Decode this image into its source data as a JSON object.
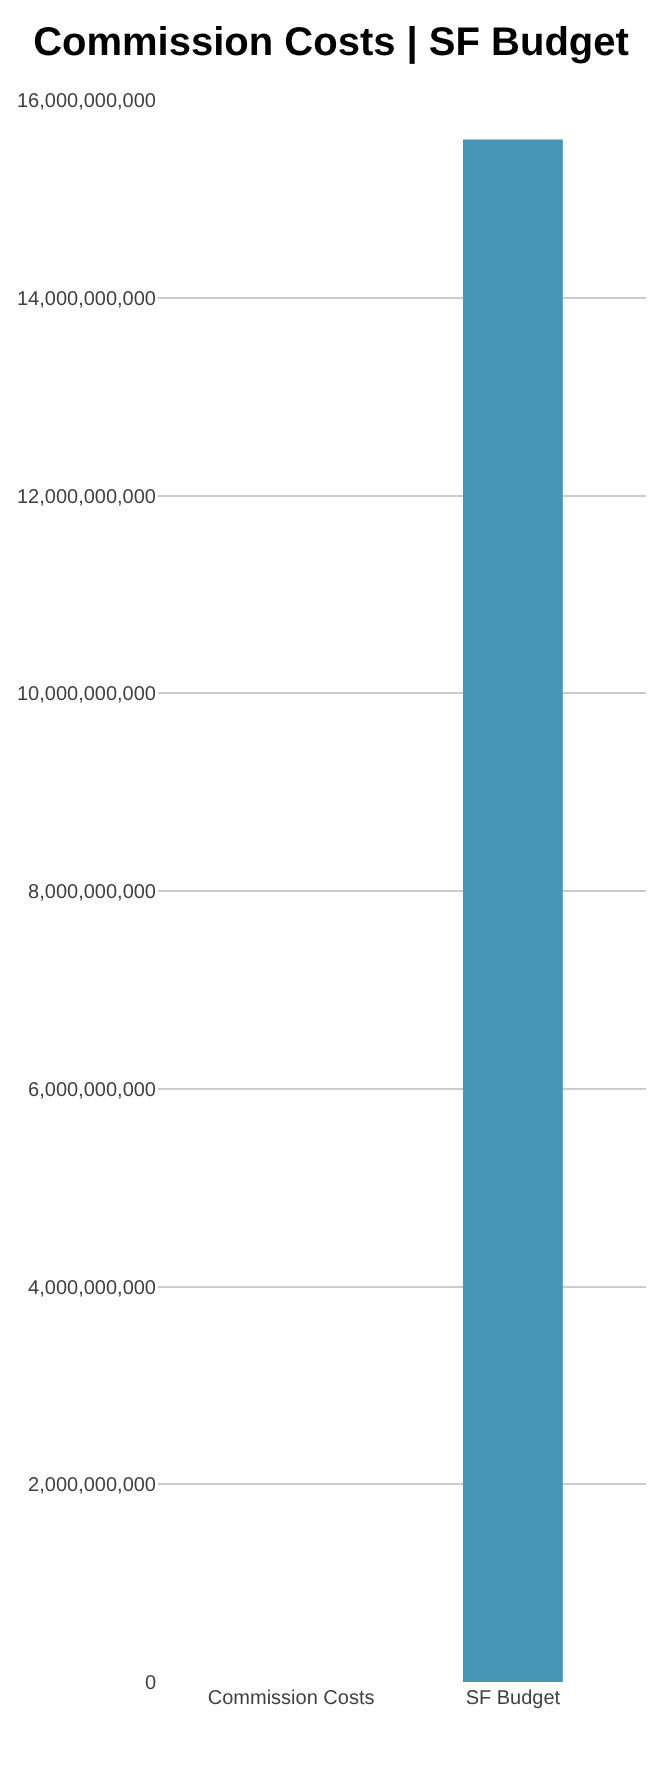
{
  "chart_data": {
    "type": "bar",
    "title": "Commission Costs | SF Budget",
    "categories": [
      "Commission Costs",
      "SF Budget"
    ],
    "values": [
      0,
      15600000000
    ],
    "color": "#4695b6",
    "ylim": [
      0,
      16000000000
    ],
    "yticks": [
      {
        "value": 0,
        "label": "0"
      },
      {
        "value": 2000000000,
        "label": "2,000,000,000"
      },
      {
        "value": 4000000000,
        "label": "4,000,000,000"
      },
      {
        "value": 6000000000,
        "label": "6,000,000,000"
      },
      {
        "value": 8000000000,
        "label": "8,000,000,000"
      },
      {
        "value": 10000000000,
        "label": "10,000,000,000"
      },
      {
        "value": 12000000000,
        "label": "12,000,000,000"
      },
      {
        "value": 14000000000,
        "label": "14,000,000,000"
      },
      {
        "value": 16000000000,
        "label": "16,000,000,000"
      }
    ],
    "grid": "y",
    "legend": false
  }
}
